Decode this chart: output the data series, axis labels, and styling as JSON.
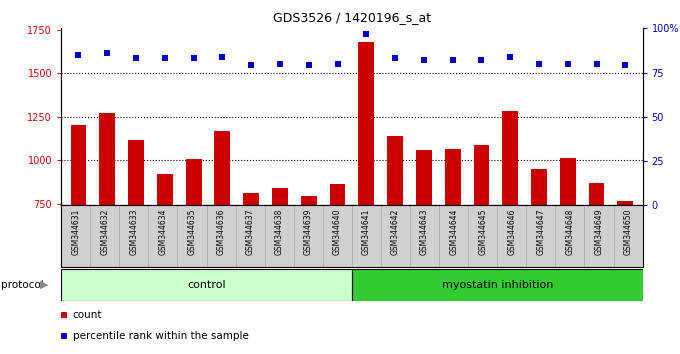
{
  "title": "GDS3526 / 1420196_s_at",
  "samples": [
    "GSM344631",
    "GSM344632",
    "GSM344633",
    "GSM344634",
    "GSM344635",
    "GSM344636",
    "GSM344637",
    "GSM344638",
    "GSM344639",
    "GSM344640",
    "GSM344641",
    "GSM344642",
    "GSM344643",
    "GSM344644",
    "GSM344645",
    "GSM344646",
    "GSM344647",
    "GSM344648",
    "GSM344649",
    "GSM344650"
  ],
  "counts": [
    1205,
    1270,
    1115,
    920,
    1005,
    1170,
    810,
    840,
    795,
    860,
    1680,
    1140,
    1060,
    1065,
    1090,
    1285,
    950,
    1010,
    870,
    765
  ],
  "percentile_ranks": [
    85,
    86,
    83,
    83,
    83,
    84,
    79,
    80,
    79,
    80,
    97,
    83,
    82,
    82,
    82,
    84,
    80,
    80,
    80,
    79
  ],
  "bar_color": "#cc0000",
  "dot_color": "#0000cc",
  "ylim_left": [
    740,
    1760
  ],
  "ylim_right": [
    0,
    100
  ],
  "yticks_left": [
    750,
    1000,
    1250,
    1500,
    1750
  ],
  "yticks_right": [
    0,
    25,
    50,
    75,
    100
  ],
  "dotted_lines": [
    1000,
    1250,
    1500
  ],
  "control_color": "#ccffcc",
  "inhibition_color": "#33cc33",
  "control_n": 10,
  "inhibition_n": 10,
  "legend_count_label": "count",
  "legend_pct_label": "percentile rank within the sample",
  "protocol_label": "protocol"
}
